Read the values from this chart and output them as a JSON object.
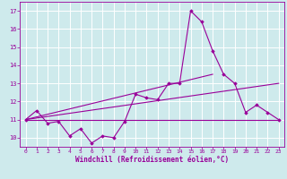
{
  "xlabel": "Windchill (Refroidissement éolien,°C)",
  "ylabel": "",
  "bg_color": "#ceeaec",
  "line_color": "#990099",
  "grid_color": "#ffffff",
  "xlim": [
    -0.5,
    23.5
  ],
  "ylim": [
    9.5,
    17.5
  ],
  "yticks": [
    10,
    11,
    12,
    13,
    14,
    15,
    16,
    17
  ],
  "xticks": [
    0,
    1,
    2,
    3,
    4,
    5,
    6,
    7,
    8,
    9,
    10,
    11,
    12,
    13,
    14,
    15,
    16,
    17,
    18,
    19,
    20,
    21,
    22,
    23
  ],
  "main_data": {
    "x": [
      0,
      1,
      2,
      3,
      4,
      5,
      6,
      7,
      8,
      9,
      10,
      11,
      12,
      13,
      14,
      15,
      16,
      17,
      18,
      19,
      20,
      21,
      22,
      23
    ],
    "y": [
      11.0,
      11.5,
      10.8,
      10.9,
      10.1,
      10.5,
      9.7,
      10.1,
      10.0,
      10.9,
      12.4,
      12.2,
      12.1,
      13.0,
      13.0,
      17.0,
      16.4,
      14.8,
      13.5,
      13.0,
      11.4,
      11.8,
      11.4,
      11.0
    ]
  },
  "trend1": {
    "x": [
      0,
      23
    ],
    "y": [
      11.0,
      11.0
    ]
  },
  "trend2": {
    "x": [
      0,
      17
    ],
    "y": [
      11.0,
      13.5
    ]
  },
  "trend3": {
    "x": [
      0,
      23
    ],
    "y": [
      11.0,
      13.0
    ]
  }
}
